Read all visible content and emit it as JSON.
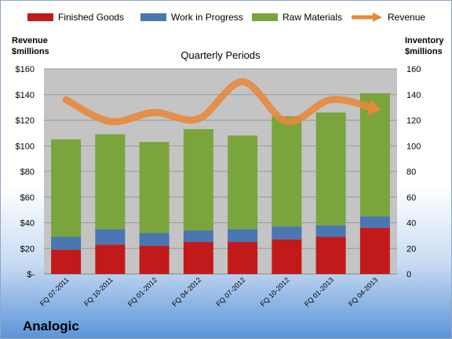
{
  "legend": {
    "finished": "Finished Goods",
    "wip": "Work in Progress",
    "raw": "Raw Materials",
    "revenue": "Revenue"
  },
  "axes": {
    "left_title_line1": "Revenue",
    "left_title_line2": "$millions",
    "right_title_line1": "Inventory",
    "right_title_line2": "$millions"
  },
  "company": "Analogic",
  "chart_data": {
    "type": "bar",
    "stacked": true,
    "title": "Quarterly Periods",
    "categories": [
      "FQ 07-2011",
      "FQ 10-2011",
      "FQ 01-2012",
      "FQ 04-2012",
      "FQ 07-2012",
      "FQ 10-2012",
      "FQ 01-2013",
      "FQ 04-2013"
    ],
    "series": [
      {
        "name": "Finished Goods",
        "color": "#c21a1a",
        "values": [
          19,
          23,
          22,
          25,
          25,
          27,
          29,
          36
        ]
      },
      {
        "name": "Work in Progress",
        "color": "#4a76b2",
        "values": [
          10,
          12,
          10,
          9,
          10,
          10,
          9,
          9
        ]
      },
      {
        "name": "Raw Materials",
        "color": "#79a53c",
        "values": [
          76,
          74,
          71,
          79,
          73,
          86,
          88,
          96
        ]
      }
    ],
    "line_series": {
      "name": "Revenue",
      "color": "#e8883a",
      "axis": "left",
      "values": [
        136,
        119,
        126,
        121,
        150,
        119,
        136,
        129
      ]
    },
    "left_axis": {
      "ylim": [
        0,
        160
      ],
      "ticks": [
        "$-",
        "$20",
        "$40",
        "$60",
        "$80",
        "$100",
        "$120",
        "$140",
        "$160"
      ]
    },
    "right_axis": {
      "ylim": [
        0,
        160
      ],
      "ticks": [
        "0",
        "20",
        "40",
        "60",
        "80",
        "100",
        "120",
        "140",
        "160"
      ]
    },
    "grid": true
  }
}
